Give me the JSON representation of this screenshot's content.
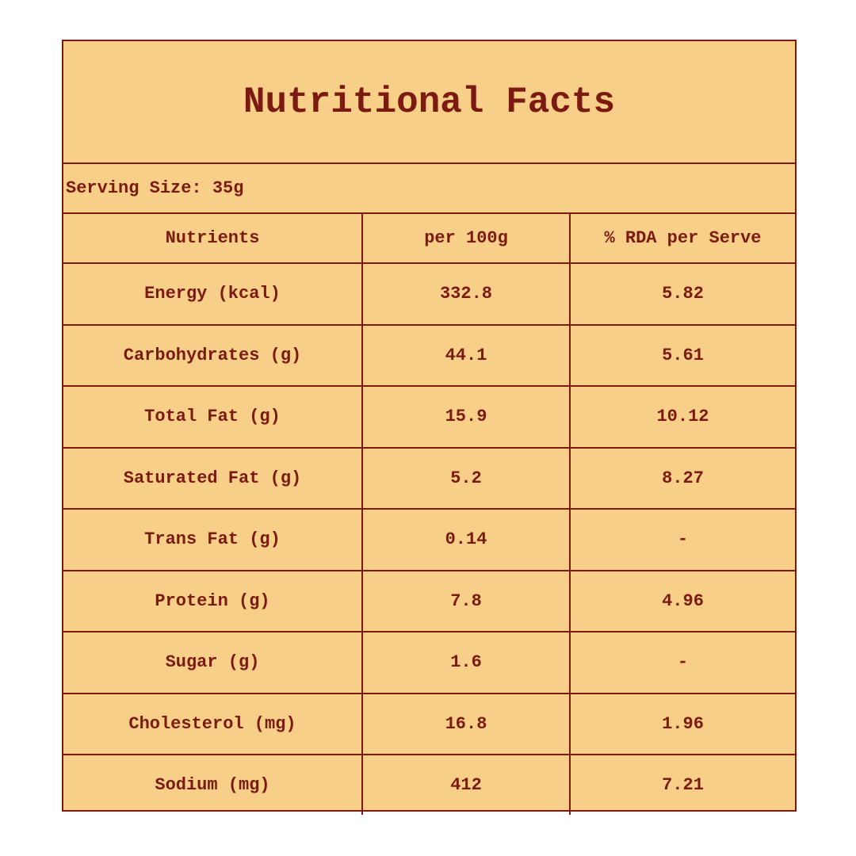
{
  "header": {
    "title": "Nutritional Facts",
    "serving": "Serving Size: 35g"
  },
  "table": {
    "columns": [
      "Nutrients",
      "per 100g",
      "% RDA per Serve"
    ],
    "rows": [
      [
        "Energy (kcal)",
        "332.8",
        "5.82"
      ],
      [
        "Carbohydrates (g)",
        "44.1",
        "5.61"
      ],
      [
        "Total Fat (g)",
        "15.9",
        "10.12"
      ],
      [
        "Saturated Fat (g)",
        "5.2",
        "8.27"
      ],
      [
        "Trans Fat (g)",
        "0.14",
        "-"
      ],
      [
        "Protein (g)",
        "7.8",
        "4.96"
      ],
      [
        "Sugar (g)",
        "1.6",
        "-"
      ],
      [
        "Cholesterol (mg)",
        "16.8",
        "1.96"
      ],
      [
        "Sodium (mg)",
        "412",
        "7.21"
      ]
    ]
  }
}
